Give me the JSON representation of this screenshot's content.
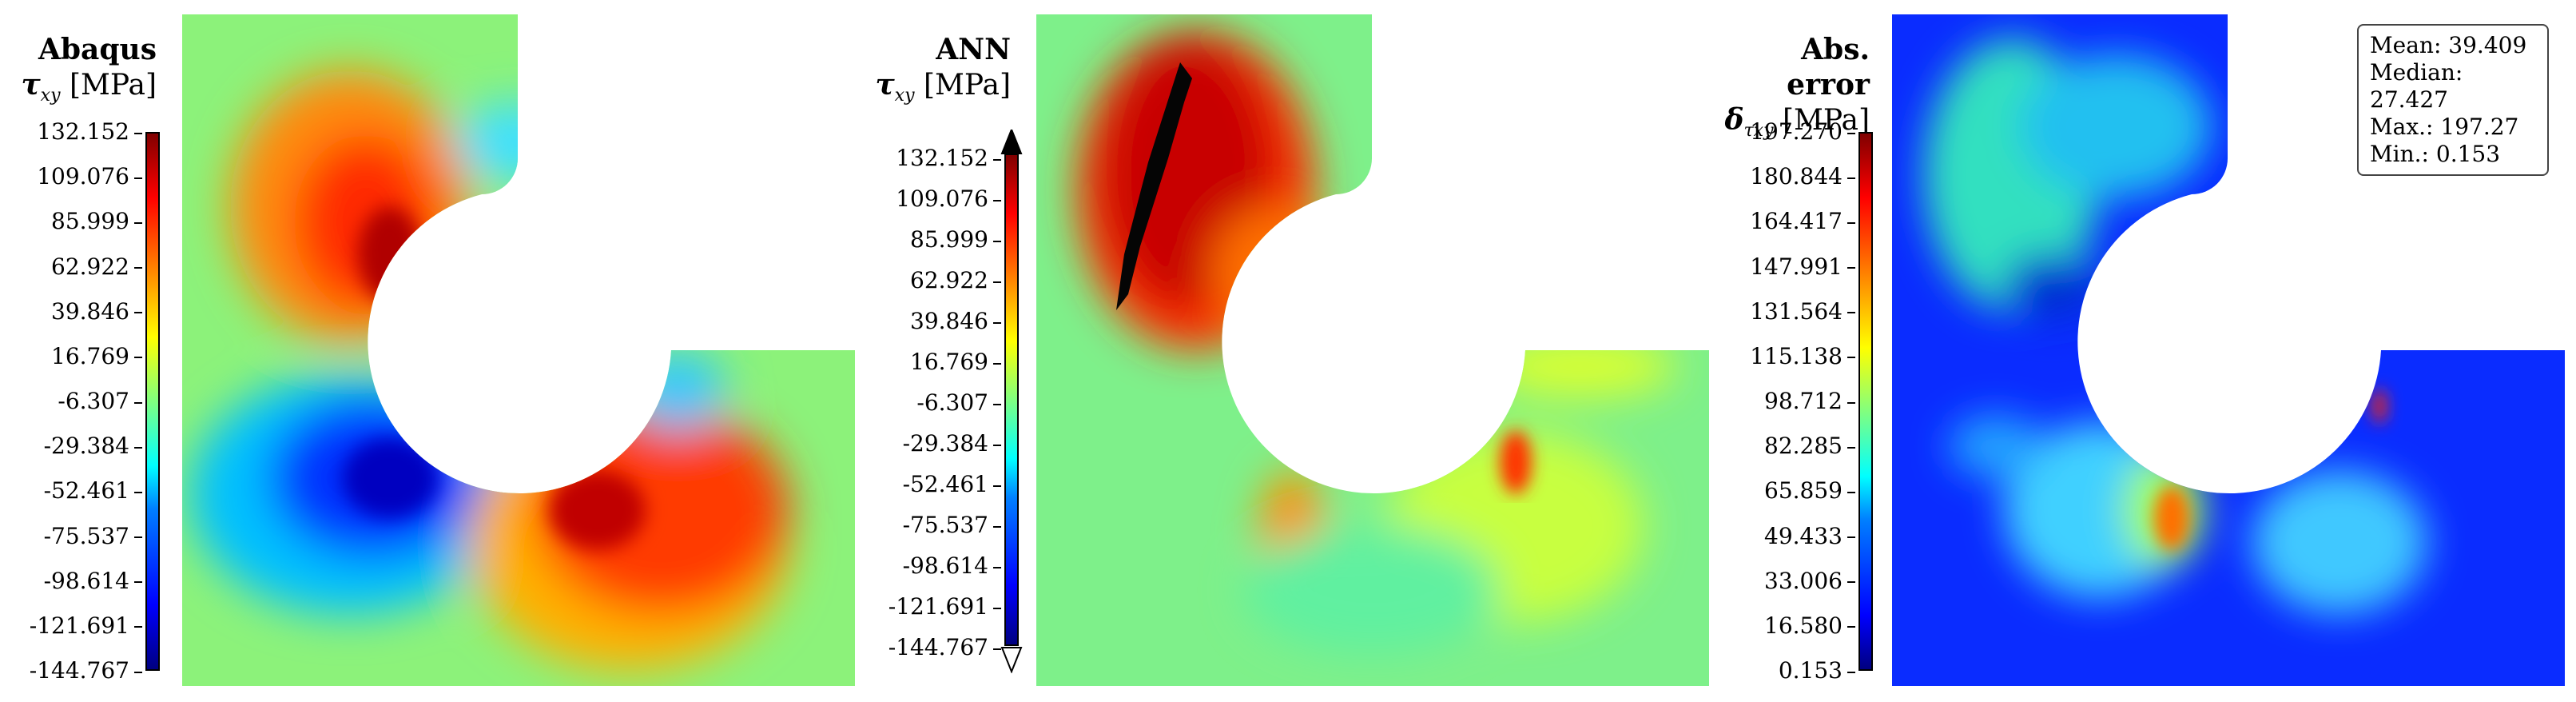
{
  "panels": [
    {
      "title": "Abaqus",
      "label_symbol": "τ",
      "label_sub": "xy",
      "label_unit": "[MPa]",
      "ticks": [
        "132.152",
        "109.076",
        "85.999",
        "62.922",
        "39.846",
        "16.769",
        "-6.307",
        "-29.384",
        "-52.461",
        "-75.537",
        "-98.614",
        "-121.691",
        "-144.767"
      ]
    },
    {
      "title": "ANN",
      "label_symbol": "τ",
      "label_sub": "xy",
      "label_unit": "[MPa]",
      "ticks": [
        "132.152",
        "109.076",
        "85.999",
        "62.922",
        "39.846",
        "16.769",
        "-6.307",
        "-29.384",
        "-52.461",
        "-75.537",
        "-98.614",
        "-121.691",
        "-144.767"
      ]
    },
    {
      "title": "Abs. error",
      "label_symbol": "δ",
      "label_sub": "τxy",
      "label_unit": "[MPa]",
      "ticks": [
        "197.270",
        "180.844",
        "164.417",
        "147.991",
        "131.564",
        "115.138",
        "98.712",
        "82.285",
        "65.859",
        "49.433",
        "33.006",
        "16.580",
        "0.153"
      ]
    }
  ],
  "stats": {
    "mean": "Mean: 39.409",
    "median": "Median: 27.427",
    "max": "Max.: 197.27",
    "min": "Min.: 0.153"
  },
  "colors": {
    "field_background_p1": "#8cf27a",
    "field_background_p2": "#7ef08a",
    "field_background_p3": "#0a2cff"
  }
}
